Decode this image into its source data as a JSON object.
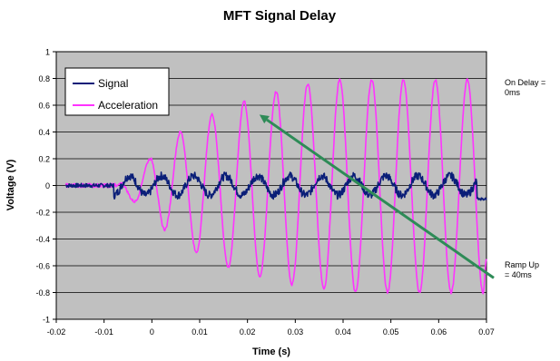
{
  "chart_data": {
    "type": "line",
    "title": "MFT Signal Delay",
    "xlabel": "Time (s)",
    "ylabel": "Voltage (V)",
    "xlim": [
      -0.02,
      0.07
    ],
    "ylim": [
      -1,
      1
    ],
    "x_ticks": [
      "-0.02",
      "-0.01",
      "0",
      "0.01",
      "0.02",
      "0.03",
      "0.04",
      "0.05",
      "0.06",
      "0.07"
    ],
    "y_ticks": [
      "1",
      "0.8",
      "0.6",
      "0.4",
      "0.2",
      "0",
      "-0.2",
      "-0.4",
      "-0.6",
      "-0.8",
      "-1"
    ],
    "grid": "horizontal",
    "plot_background": "#c0c0c0",
    "legend_position": "top-left",
    "series": [
      {
        "name": "Signal",
        "color": "#0a1e78",
        "description": "approximately 0.08 V amplitude sinusoid about 0 V starting near -0.008 s, period about 0.0067 s",
        "amplitude": 0.08,
        "period": 0.0067,
        "onset": -0.008
      },
      {
        "name": "Acceleration",
        "color": "#ff33ff",
        "description": "sinusoid starting near -0.006 s with peaks growing to about ±0.8 V by 0.035 s",
        "peaks": [
          {
            "x": -0.0003,
            "y": 0.2
          },
          {
            "x": 0.006,
            "y": 0.4
          },
          {
            "x": 0.0126,
            "y": 0.53
          },
          {
            "x": 0.0193,
            "y": 0.63
          },
          {
            "x": 0.026,
            "y": 0.7
          },
          {
            "x": 0.0326,
            "y": 0.76
          },
          {
            "x": 0.0393,
            "y": 0.79
          },
          {
            "x": 0.046,
            "y": 0.79
          },
          {
            "x": 0.0526,
            "y": 0.79
          },
          {
            "x": 0.0593,
            "y": 0.79
          },
          {
            "x": 0.066,
            "y": 0.79
          }
        ],
        "troughs": [
          {
            "x": -0.0036,
            "y": -0.12
          },
          {
            "x": 0.0027,
            "y": -0.33
          },
          {
            "x": 0.0093,
            "y": -0.5
          },
          {
            "x": 0.016,
            "y": -0.61
          },
          {
            "x": 0.0226,
            "y": -0.68
          },
          {
            "x": 0.0293,
            "y": -0.74
          },
          {
            "x": 0.036,
            "y": -0.77
          },
          {
            "x": 0.0426,
            "y": -0.8
          },
          {
            "x": 0.0493,
            "y": -0.8
          },
          {
            "x": 0.056,
            "y": -0.8
          },
          {
            "x": 0.0626,
            "y": -0.8
          },
          {
            "x": 0.0693,
            "y": -0.8
          }
        ]
      }
    ],
    "arrow": {
      "color": "#2e8b57",
      "from": {
        "x": 0.07,
        "y": -0.65
      },
      "to": {
        "x": 0.0225,
        "y": 0.53
      }
    },
    "annotations": [
      {
        "text_lines": [
          "On Delay =",
          "0ms"
        ],
        "position": "right-top"
      },
      {
        "text_lines": [
          "Ramp Up",
          "= 40ms"
        ],
        "position": "right-bottom"
      }
    ]
  }
}
